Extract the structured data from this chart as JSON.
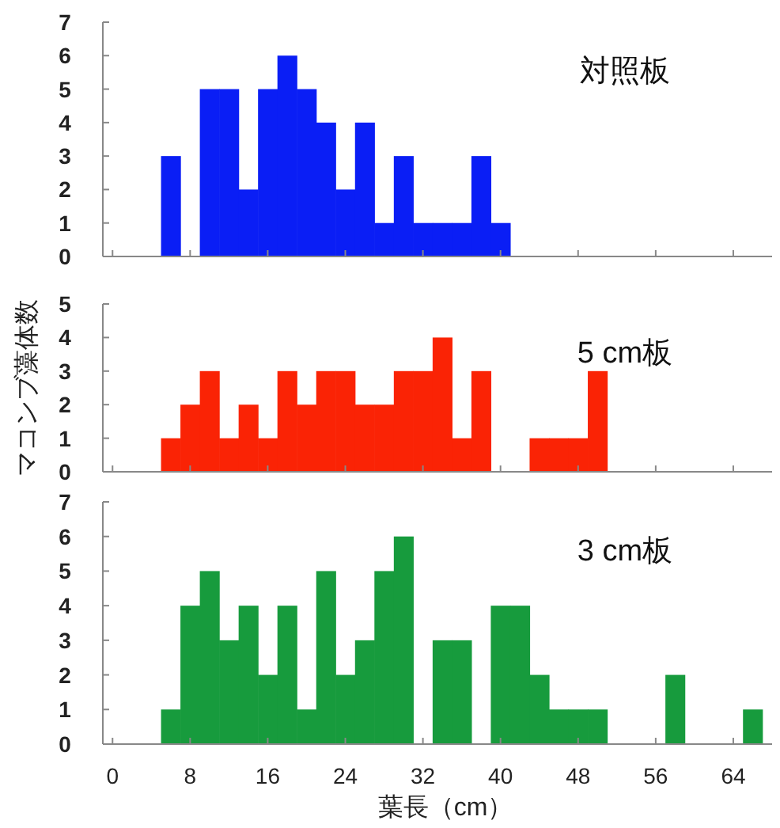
{
  "chart_data": [
    {
      "type": "histogram",
      "title": "対照板",
      "color": "#0a1ef5",
      "bins": [
        5,
        7,
        9,
        11,
        13,
        15,
        17,
        19,
        21,
        23,
        25,
        27,
        29,
        31,
        33,
        35,
        37,
        39,
        41
      ],
      "values": [
        3,
        0,
        5,
        5,
        2,
        5,
        6,
        5,
        4,
        2,
        4,
        1,
        3,
        1,
        1,
        1,
        3,
        1
      ],
      "xlim": [
        -1,
        68
      ],
      "xticks": [
        0,
        8,
        16,
        24,
        32,
        40,
        48,
        56,
        64
      ],
      "ylim": [
        0,
        7
      ],
      "yticks": [
        0,
        1,
        2,
        3,
        4,
        5,
        6,
        7
      ],
      "tick_labels": "y"
    },
    {
      "type": "histogram",
      "title": "5 cm板",
      "ylabel": "マコンブ藻体数",
      "color": "#fa2305",
      "bins": [
        5,
        7,
        9,
        11,
        13,
        15,
        17,
        19,
        21,
        23,
        25,
        27,
        29,
        31,
        33,
        35,
        37,
        39,
        41,
        43,
        45,
        47,
        49,
        51
      ],
      "values": [
        1,
        2,
        3,
        1,
        2,
        1,
        3,
        2,
        3,
        3,
        2,
        2,
        3,
        3,
        4,
        1,
        3,
        0,
        0,
        1,
        1,
        1,
        3
      ],
      "xlim": [
        -1,
        68
      ],
      "xticks": [
        0,
        8,
        16,
        24,
        32,
        40,
        48,
        56,
        64
      ],
      "ylim": [
        0,
        5
      ],
      "yticks": [
        0,
        1,
        2,
        3,
        4,
        5
      ],
      "tick_labels": "y"
    },
    {
      "type": "histogram",
      "title": "3 cm板",
      "xlabel": "葉長（cm）",
      "color": "#179b3d",
      "bins": [
        5,
        7,
        9,
        11,
        13,
        15,
        17,
        19,
        21,
        23,
        25,
        27,
        29,
        31,
        33,
        35,
        37,
        39,
        41,
        43,
        45,
        47,
        49,
        51,
        53,
        55,
        57,
        59,
        61,
        63,
        65,
        67
      ],
      "values": [
        1,
        4,
        5,
        3,
        4,
        2,
        4,
        1,
        5,
        2,
        3,
        5,
        6,
        0,
        3,
        3,
        0,
        4,
        4,
        2,
        1,
        1,
        1,
        0,
        0,
        0,
        2,
        0,
        0,
        0,
        1
      ],
      "xlim": [
        -1,
        68
      ],
      "xticks": [
        0,
        8,
        16,
        24,
        32,
        40,
        48,
        56,
        64
      ],
      "ylim": [
        0,
        7
      ],
      "yticks": [
        0,
        1,
        2,
        3,
        4,
        5,
        6,
        7
      ]
    }
  ]
}
